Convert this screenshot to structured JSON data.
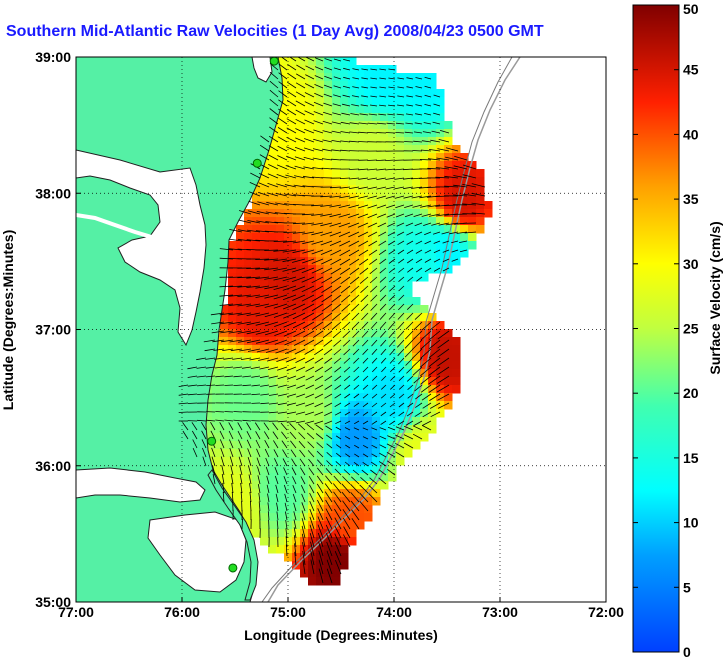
{
  "title": "Southern Mid-Atlantic Raw Velocities (1 Day Avg) 2008/04/23 0500 GMT",
  "map": {
    "x_axis_label": "Longitude (Degrees:Minutes)",
    "y_axis_label": "Latitude (Degrees:Minutes)",
    "lon_ticks": [
      {
        "lon": -77,
        "label": "77:00"
      },
      {
        "lon": -76,
        "label": "76:00"
      },
      {
        "lon": -75,
        "label": "75:00"
      },
      {
        "lon": -74,
        "label": "74:00"
      },
      {
        "lon": -73,
        "label": "73:00"
      },
      {
        "lon": -72,
        "label": "72:00"
      }
    ],
    "lat_ticks": [
      {
        "lat": 35,
        "label": "35:00"
      },
      {
        "lat": 36,
        "label": "36:00"
      },
      {
        "lat": 37,
        "label": "37:00"
      },
      {
        "lat": 38,
        "label": "38:00"
      },
      {
        "lat": 39,
        "label": "39:00"
      }
    ],
    "lon_range": [
      -77,
      -72
    ],
    "lat_range": [
      35,
      39
    ],
    "land_color": "#55f0a5",
    "coast_color": "#202020",
    "vector_color": "#000000",
    "grid": "dotted",
    "radar_sites": [
      {
        "lon": -75.13,
        "lat": 38.97
      },
      {
        "lon": -75.29,
        "lat": 38.22
      },
      {
        "lon": -75.72,
        "lat": 36.18
      },
      {
        "lon": -75.52,
        "lat": 35.25
      }
    ]
  },
  "colorbar": {
    "label": "Surface Velocity (cm/s)",
    "min": 0,
    "max": 50,
    "ticks": [
      "0",
      "5",
      "10",
      "15",
      "20",
      "25",
      "30",
      "35",
      "40",
      "45",
      "50"
    ],
    "colormap": "jet"
  },
  "velocity_field": {
    "units": "cm/s",
    "blobs": [
      {
        "lon": -75.0,
        "lat": 37.35,
        "speed": 45
      },
      {
        "lon": -75.25,
        "lat": 37.15,
        "speed": 44
      },
      {
        "lon": -74.6,
        "lat": 37.7,
        "speed": 36
      },
      {
        "lon": -74.2,
        "lat": 38.3,
        "speed": 26
      },
      {
        "lon": -74.1,
        "lat": 38.85,
        "speed": 12
      },
      {
        "lon": -73.7,
        "lat": 38.85,
        "speed": 12
      },
      {
        "lon": -73.35,
        "lat": 37.95,
        "speed": 45
      },
      {
        "lon": -73.7,
        "lat": 37.5,
        "speed": 14
      },
      {
        "lon": -73.5,
        "lat": 37.55,
        "speed": 12
      },
      {
        "lon": -73.5,
        "lat": 36.8,
        "speed": 46
      },
      {
        "lon": -74.35,
        "lat": 36.2,
        "speed": 7
      },
      {
        "lon": -74.0,
        "lat": 36.5,
        "speed": 11
      },
      {
        "lon": -74.8,
        "lat": 36.35,
        "speed": 24
      },
      {
        "lon": -75.4,
        "lat": 36.5,
        "speed": 21
      },
      {
        "lon": -74.55,
        "lat": 35.3,
        "speed": 50
      },
      {
        "lon": -74.4,
        "lat": 35.6,
        "speed": 40
      },
      {
        "lon": -73.75,
        "lat": 36.1,
        "speed": 28
      },
      {
        "lon": -75.1,
        "lat": 38.5,
        "speed": 30
      },
      {
        "lon": -75.05,
        "lat": 35.8,
        "speed": 20
      },
      {
        "lon": -75.5,
        "lat": 35.7,
        "speed": 28
      }
    ]
  }
}
